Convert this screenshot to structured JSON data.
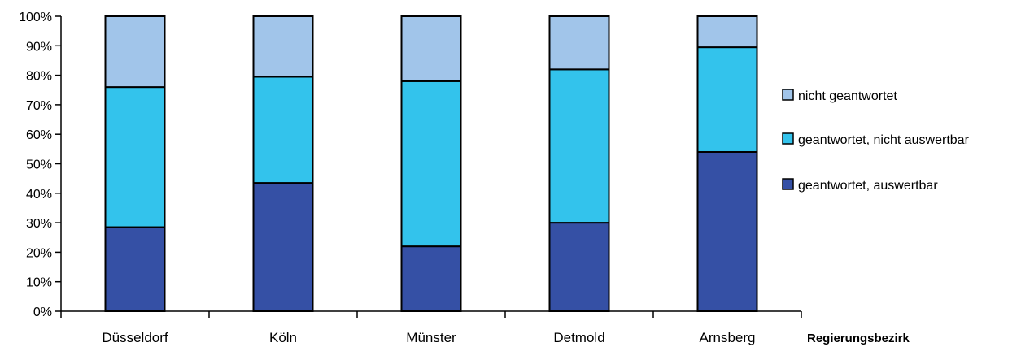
{
  "chart_data": {
    "type": "bar",
    "stacked": true,
    "normalized": true,
    "categories": [
      "Düsseldorf",
      "Köln",
      "Münster",
      "Detmold",
      "Arnsberg"
    ],
    "series": [
      {
        "name": "geantwortet, auswertbar",
        "color": "#3550a5",
        "values": [
          28.5,
          43.5,
          22,
          30,
          54
        ]
      },
      {
        "name": "geantwortet, nicht auswertbar",
        "color": "#33c3ec",
        "values": [
          47.5,
          36,
          56,
          52,
          35.5
        ]
      },
      {
        "name": "nicht geantwortet",
        "color": "#a1c5ea",
        "values": [
          24,
          20.5,
          22,
          18,
          10.5
        ]
      }
    ],
    "yticks": [
      "0%",
      "10%",
      "20%",
      "30%",
      "40%",
      "50%",
      "60%",
      "70%",
      "80%",
      "90%",
      "100%"
    ],
    "ylim": [
      0,
      100
    ],
    "xlabel": "Regierungsbezirk",
    "ylabel": "",
    "grid": false,
    "legend_position": "right",
    "legend_order": [
      "nicht geantwortet",
      "geantwortet, nicht auswertbar",
      "geantwortet, auswertbar"
    ]
  }
}
